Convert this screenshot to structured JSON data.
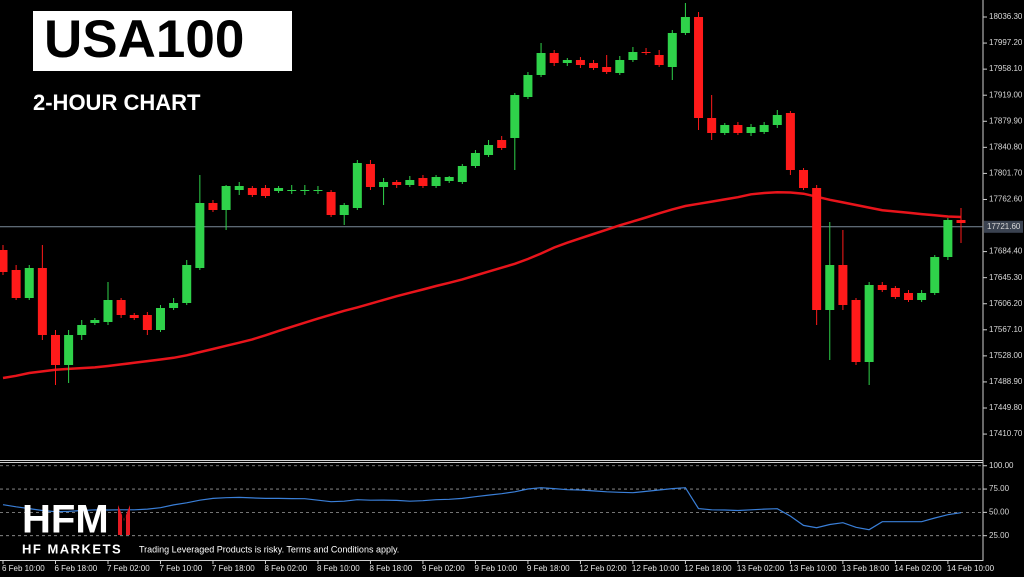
{
  "chart_data": [
    {
      "type": "candlestick",
      "title": "USA100",
      "subtitle": "2-HOUR CHART",
      "categories": [
        "6 Feb 10:00",
        null,
        null,
        null,
        "6 Feb 18:00",
        null,
        null,
        null,
        "7 Feb 02:00",
        null,
        null,
        null,
        "7 Feb 10:00",
        null,
        null,
        null,
        "7 Feb 18:00",
        null,
        null,
        null,
        "8 Feb 02:00",
        null,
        null,
        null,
        "8 Feb 10:00",
        null,
        null,
        null,
        "8 Feb 18:00",
        null,
        null,
        null,
        "9 Feb 02:00",
        null,
        null,
        null,
        "9 Feb 10:00",
        null,
        null,
        null,
        "9 Feb 18:00",
        null,
        null,
        null,
        "12 Feb 02:00",
        null,
        null,
        null,
        "12 Feb 10:00",
        null,
        null,
        null,
        "12 Feb 18:00",
        null,
        null,
        null,
        "13 Feb 02:00",
        null,
        null,
        null,
        "13 Feb 10:00",
        null,
        null,
        null,
        "13 Feb 18:00",
        null,
        null,
        null,
        "14 Feb 02:00",
        null,
        null,
        null,
        "14 Feb 10:00",
        null
      ],
      "open": [
        17686.8,
        17656.8,
        17614.8,
        17659.8,
        17559.3,
        17514.3,
        17559.3,
        17577.3,
        17578.8,
        17611.8,
        17589.3,
        17589.3,
        17566.8,
        17599.8,
        17607.3,
        17659.8,
        17757.3,
        17746.8,
        17776.8,
        17779.8,
        17779.8,
        17775.3,
        17776.8,
        17776.8,
        17776.8,
        17773.8,
        17739.3,
        17749.8,
        17815.8,
        17781.3,
        17788.8,
        17784.3,
        17794.8,
        17782.8,
        17790.3,
        17788.8,
        17812.8,
        17829.3,
        17851.8,
        17854.8,
        17916.3,
        17949.3,
        17982.3,
        17967.3,
        17971.8,
        17967.3,
        17961.3,
        17952.3,
        17971.8,
        17983.8,
        17979.3,
        17961.3,
        18012.3,
        18036.3,
        17884.8,
        17862.3,
        17874.3,
        17862.3,
        17863.8,
        17874.3,
        17892.3,
        17806.8,
        17779.8,
        17596.8,
        17664.3,
        17611.8,
        17518.8,
        17634.3,
        17629.8,
        17622.3,
        17611.8,
        17622.3,
        17676.3,
        17731.8
      ],
      "high": [
        17694.3,
        17664.3,
        17664.3,
        17694.3,
        17566.8,
        17566.8,
        17581.8,
        17584.8,
        17638.8,
        17614.8,
        17592.3,
        17593.8,
        17604.3,
        17614.8,
        17671.8,
        17799.3,
        17761.8,
        17784.3,
        17788.8,
        17782.8,
        17784.3,
        17782.8,
        17784.3,
        17784.3,
        17782.8,
        17776.8,
        17757.3,
        17821.8,
        17821.8,
        17794.8,
        17791.8,
        17797.8,
        17799.3,
        17799.3,
        17797.8,
        17815.8,
        17836.8,
        17851.8,
        17857.8,
        17922.3,
        17953.8,
        17997.3,
        17986.8,
        17974.8,
        17976.3,
        17971.8,
        17979.3,
        17977.8,
        17991.3,
        17989.8,
        17986.8,
        18016.8,
        18057.3,
        18043.8,
        17919.3,
        17877.3,
        17878.8,
        17875.8,
        17878.8,
        17896.8,
        17895.3,
        17809.8,
        17784.3,
        17728.8,
        17716.8,
        17614.8,
        17638.8,
        17638.8,
        17632.8,
        17626.8,
        17626.8,
        17679.3,
        17734.8,
        17749.8
      ],
      "low": [
        17649.3,
        17611.8,
        17611.8,
        17551.8,
        17484.3,
        17487.3,
        17551.8,
        17574.3,
        17574.3,
        17584.8,
        17581.8,
        17559.3,
        17563.8,
        17596.8,
        17604.3,
        17656.8,
        17743.8,
        17716.8,
        17769.3,
        17766.3,
        17764.8,
        17772.3,
        17770.8,
        17769.3,
        17770.8,
        17736.3,
        17724.3,
        17746.8,
        17776.8,
        17754.3,
        17779.8,
        17781.3,
        17779.8,
        17779.8,
        17787.3,
        17785.8,
        17809.8,
        17826.3,
        17836.8,
        17806.8,
        17913.3,
        17946.3,
        17962.8,
        17962.8,
        17959.8,
        17956.8,
        17950.8,
        17949.3,
        17968.8,
        17979.3,
        17961.3,
        17941.8,
        18009.3,
        17866.8,
        17851.8,
        17859.3,
        17859.3,
        17857.8,
        17860.8,
        17869.8,
        17799.3,
        17776.8,
        17574.3,
        17521.8,
        17596.8,
        17514.3,
        17484.3,
        17623.8,
        17613.3,
        17608.8,
        17608.8,
        17619.3,
        17671.8,
        17697.3
      ],
      "close": [
        17653.8,
        17614.8,
        17659.8,
        17559.3,
        17514.3,
        17559.3,
        17574.3,
        17581.8,
        17611.8,
        17589.3,
        17584.8,
        17566.8,
        17599.8,
        17607.3,
        17664.3,
        17757.3,
        17746.8,
        17782.8,
        17782.8,
        17769.3,
        17767.8,
        17779.8,
        17776.8,
        17776.8,
        17776.8,
        17739.3,
        17754.3,
        17817.3,
        17781.3,
        17788.8,
        17784.3,
        17791.8,
        17782.8,
        17796.3,
        17796.3,
        17812.8,
        17832.3,
        17844.3,
        17839.8,
        17919.3,
        17949.3,
        17982.3,
        17967.3,
        17971.8,
        17964.3,
        17959.8,
        17953.8,
        17971.8,
        17983.8,
        17982.3,
        17964.3,
        18012.3,
        18036.3,
        17884.8,
        17862.3,
        17874.3,
        17862.3,
        17871.3,
        17874.3,
        17889.3,
        17806.8,
        17779.8,
        17596.8,
        17664.3,
        17604.3,
        17518.8,
        17634.3,
        17626.8,
        17616.3,
        17611.8,
        17622.3,
        17676.3,
        17731.8,
        17727.3
      ],
      "up_color": "#2fd24a",
      "down_color": "#ff1a1a",
      "moving_average": {
        "color": "#e8141b",
        "values": [
          17494.8,
          17498.1,
          17502.3,
          17504.7,
          17507.3,
          17508.5,
          17509.7,
          17510.7,
          17512.8,
          17515.2,
          17517.6,
          17520.2,
          17522.6,
          17525.1,
          17528.9,
          17533.7,
          17538.3,
          17543.1,
          17547.8,
          17552.7,
          17558.9,
          17565.5,
          17571.6,
          17577.8,
          17583.9,
          17589.8,
          17595.6,
          17600.7,
          17606.3,
          17612.0,
          17617.5,
          17622.6,
          17627.6,
          17632.8,
          17637.6,
          17642.7,
          17648.6,
          17654.4,
          17660.3,
          17666.1,
          17673.3,
          17681.6,
          17690.6,
          17697.8,
          17704.4,
          17710.8,
          17717.3,
          17723.9,
          17729.7,
          17735.6,
          17741.9,
          17747.7,
          17752.8,
          17756.1,
          17759.4,
          17762.7,
          17766.0,
          17770.4,
          17772.3,
          17773.4,
          17773.1,
          17771.3,
          17766.8,
          17762.1,
          17758.2,
          17754.3,
          17750.4,
          17746.5,
          17744.6,
          17742.6,
          17740.7,
          17738.9,
          17737.1,
          17736.3
        ]
      },
      "current_price": {
        "value": 17721.6,
        "label": "17721.60"
      },
      "ylim": [
        17371.8,
        18061.8
      ],
      "yticks": [
        {
          "value": 18036.3,
          "label": "18036.30"
        },
        {
          "value": 17997.2,
          "label": "17997.20"
        },
        {
          "value": 17958.1,
          "label": "17958.10"
        },
        {
          "value": 17919,
          "label": "17919.00"
        },
        {
          "value": 17879.9,
          "label": "17879.90"
        },
        {
          "value": 17840.8,
          "label": "17840.80"
        },
        {
          "value": 17801.7,
          "label": "17801.70"
        },
        {
          "value": 17762.6,
          "label": "17762.60"
        },
        {
          "value": 17684.4,
          "label": "17684.40"
        },
        {
          "value": 17645.3,
          "label": "17645.30"
        },
        {
          "value": 17606.2,
          "label": "17606.20"
        },
        {
          "value": 17567.1,
          "label": "17567.10"
        },
        {
          "value": 17528,
          "label": "17528.00"
        },
        {
          "value": 17488.9,
          "label": "17488.90"
        },
        {
          "value": 17449.8,
          "label": "17449.80"
        },
        {
          "value": 17410.7,
          "label": "17410.70"
        }
      ],
      "grid": false
    },
    {
      "type": "line",
      "color": "#3a7fd8",
      "values": [
        58.2,
        56,
        54,
        52,
        50.7,
        51,
        52,
        52.8,
        52.5,
        52.8,
        52.8,
        53.5,
        55,
        58,
        60.3,
        63,
        65,
        65.7,
        66,
        65.5,
        65,
        65,
        64.8,
        64.6,
        63,
        61.4,
        62,
        63.6,
        63,
        63.2,
        62.8,
        62,
        62.5,
        63.6,
        64,
        65,
        66.8,
        68.5,
        70,
        72.1,
        75,
        76.4,
        75.5,
        74.3,
        74,
        73,
        72,
        71.5,
        71.1,
        72.5,
        74,
        75.5,
        76.4,
        54,
        52.8,
        52.5,
        52,
        52.8,
        53.5,
        53.9,
        46,
        36,
        33.6,
        37,
        38.9,
        34,
        31.4,
        40,
        40,
        40,
        40,
        44,
        47.5,
        49.6
      ],
      "ylim": [
        0,
        104
      ],
      "yticks": [
        {
          "value": 100,
          "label": "100.00"
        },
        {
          "value": 75,
          "label": "75.00"
        },
        {
          "value": 50,
          "label": "50.00"
        },
        {
          "value": 25,
          "label": "25.00"
        }
      ],
      "grid": true
    }
  ],
  "branding": {
    "logo": "HFM",
    "name": "HF MARKETS",
    "disclaimer": "Trading Leveraged Products is risky. Terms and Conditions apply."
  }
}
